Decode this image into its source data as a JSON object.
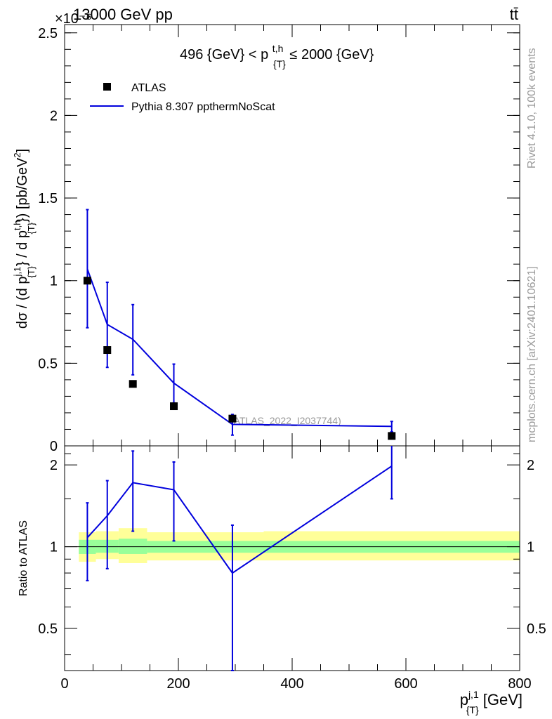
{
  "header": {
    "left": "13000 GeV pp",
    "right": "tt̄",
    "exponent": "×10⁻⁶"
  },
  "side_labels": {
    "rivet": "Rivet 4.1.0,  100k events",
    "mcplots": "mcplots.cern.ch [arXiv:2401.10621]"
  },
  "main_plot": {
    "range_label": "496 {GeV} < p",
    "range_label_sup": "t,h",
    "range_label_sub": "{T}",
    "range_label_tail": " ≤ 2000 {GeV}",
    "ylabel": "dσ / (d p{T}j,1 / d p{T}t,h) [pb/GeV²]",
    "watermark": "(ATLAS_2022_I2037744)",
    "legend": [
      {
        "label": "ATLAS",
        "marker": "square"
      },
      {
        "label": "Pythia 8.307 ppthermNoScat",
        "marker": "line"
      }
    ]
  },
  "ratio_plot": {
    "ylabel": "Ratio to ATLAS"
  },
  "x_axis": {
    "label": "p{T}j,1 [GeV]"
  },
  "colors": {
    "data": "#000000",
    "mc": "#0000dd",
    "band_inner": "#99ff99",
    "band_outer": "#ffff99"
  },
  "chart_data": [
    {
      "type": "scatter",
      "xlabel": "p{T}j,1 [GeV]",
      "ylabel": "dσ / (d p{T}j,1 / d p{T}t,h) [pb/GeV²]",
      "xlim": [
        0,
        800
      ],
      "ylim": [
        0,
        2.55
      ],
      "y_scale_factor": "1e-6",
      "y_ticks": [
        0,
        0.5,
        1,
        1.5,
        2,
        2.5
      ],
      "y_tick_labels": [
        "0",
        "0.5",
        "1",
        "1.5",
        "2",
        "2.5"
      ],
      "legend_position": "top-left",
      "series": [
        {
          "name": "ATLAS",
          "kind": "points",
          "x": [
            40,
            75,
            120,
            192,
            295,
            575
          ],
          "y": [
            1.0,
            0.58,
            0.375,
            0.24,
            0.165,
            0.06
          ]
        },
        {
          "name": "Pythia 8.307 ppthermNoScat",
          "kind": "line",
          "x": [
            40,
            75,
            120,
            192,
            295,
            575
          ],
          "y": [
            1.07,
            0.735,
            0.645,
            0.38,
            0.13,
            0.118
          ],
          "err_low": [
            0.715,
            0.475,
            0.43,
            0.26,
            0.065,
            0.085
          ],
          "err_high": [
            1.43,
            0.99,
            0.855,
            0.495,
            0.19,
            0.148
          ]
        }
      ]
    },
    {
      "type": "line",
      "xlabel": "p{T}j,1 [GeV]",
      "ylabel": "Ratio to ATLAS",
      "xlim": [
        0,
        800
      ],
      "ylim": [
        0.35,
        2.35
      ],
      "y_scale": "log",
      "y_ticks": [
        0.5,
        1,
        2
      ],
      "y_tick_labels": [
        "0.5",
        "1",
        "2"
      ],
      "x_ticks": [
        0,
        200,
        400,
        600,
        800
      ],
      "x_tick_labels": [
        "0",
        "200",
        "400",
        "600",
        "800"
      ],
      "reference_line": 1,
      "uncertainty_bands": [
        {
          "x_low": 25,
          "x_high": 55,
          "inner": [
            0.94,
            1.06
          ],
          "outer": [
            0.88,
            1.13
          ]
        },
        {
          "x_low": 55,
          "x_high": 95,
          "inner": [
            0.95,
            1.06
          ],
          "outer": [
            0.9,
            1.14
          ]
        },
        {
          "x_low": 95,
          "x_high": 145,
          "inner": [
            0.94,
            1.07
          ],
          "outer": [
            0.87,
            1.17
          ]
        },
        {
          "x_low": 145,
          "x_high": 350,
          "inner": [
            0.95,
            1.05
          ],
          "outer": [
            0.89,
            1.13
          ]
        },
        {
          "x_low": 350,
          "x_high": 800,
          "inner": [
            0.95,
            1.05
          ],
          "outer": [
            0.89,
            1.14
          ]
        }
      ],
      "series": [
        {
          "name": "Pythia 8.307 ppthermNoScat",
          "x": [
            40,
            75,
            120,
            192,
            295,
            575
          ],
          "y": [
            1.08,
            1.3,
            1.72,
            1.62,
            0.8,
            1.98
          ],
          "err_low": [
            0.75,
            0.83,
            1.14,
            1.05,
            0.35,
            1.5
          ],
          "err_high": [
            1.45,
            1.75,
            2.25,
            2.05,
            1.2,
            2.4
          ]
        }
      ]
    }
  ]
}
